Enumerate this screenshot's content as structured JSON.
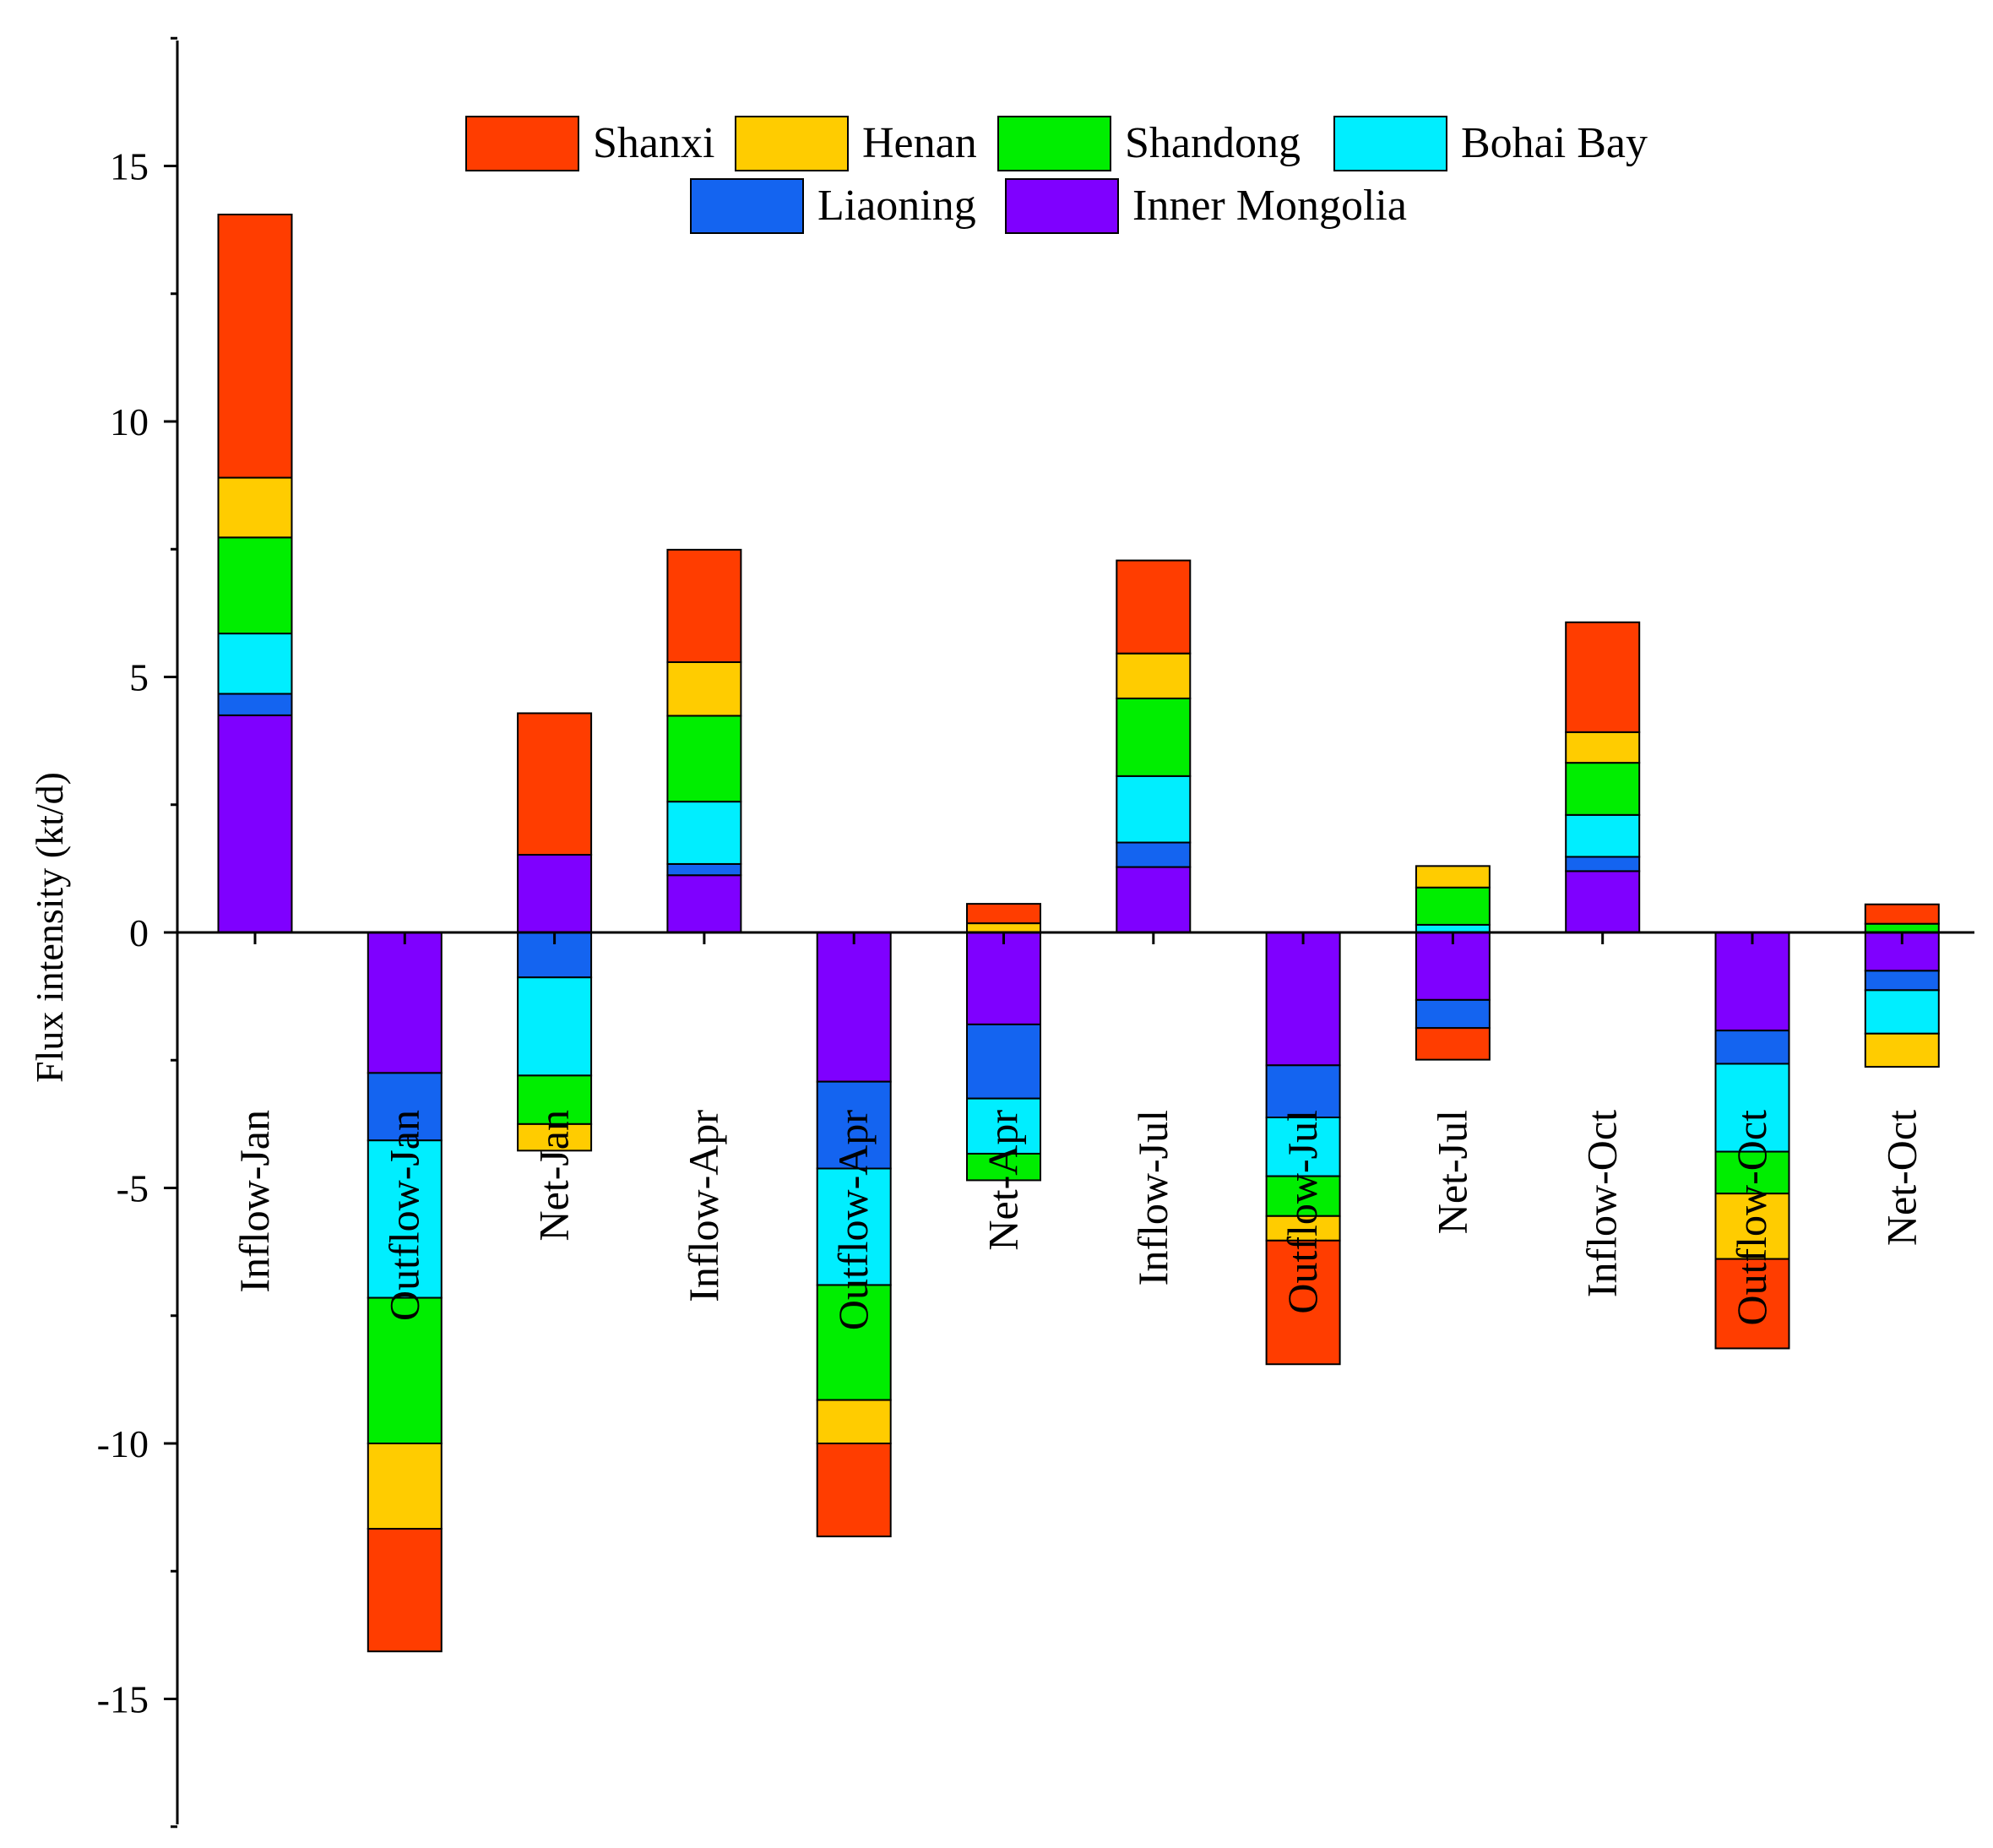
{
  "chart_data": {
    "type": "bar",
    "stacked": true,
    "title": "",
    "xlabel": "",
    "ylabel": "Flux intensity (kt/d)",
    "ylim": [
      -17.5,
      17.5
    ],
    "yticks": [
      -15,
      -10,
      -5,
      0,
      5,
      10,
      15
    ],
    "ytick_labels": [
      "-15",
      "-10",
      "-5",
      "0",
      "5",
      "10",
      "15"
    ],
    "legend_position": "top",
    "categories": [
      "Inflow-Jan",
      "Outflow-Jan",
      "Net-Jan",
      "Inflow-Apr",
      "Outflow-Apr",
      "Net-Apr",
      "Inflow-Jul",
      "Outflow-Jul",
      "Net-Jul",
      "Inflow-Oct",
      "Outflow-Oct",
      "Net-Oct"
    ],
    "series": [
      {
        "name": "Inner Mongolia",
        "color": "#7F00FF",
        "values": [
          4.25,
          -2.75,
          1.52,
          1.12,
          -2.92,
          -1.8,
          1.28,
          -2.6,
          -1.32,
          1.2,
          -1.92,
          -0.75
        ]
      },
      {
        "name": "Liaoning",
        "color": "#1464F0",
        "values": [
          0.42,
          -1.32,
          -0.88,
          0.22,
          -1.7,
          -1.45,
          0.48,
          -1.02,
          -0.55,
          0.28,
          -0.65,
          -0.38
        ]
      },
      {
        "name": "Bohai Bay",
        "color": "#00EEFF",
        "values": [
          1.18,
          -3.08,
          -1.92,
          1.22,
          -2.28,
          -1.08,
          1.3,
          -1.15,
          0.15,
          0.82,
          -1.72,
          -0.85
        ]
      },
      {
        "name": "Shandong",
        "color": "#00EE00",
        "values": [
          1.88,
          -2.85,
          -0.95,
          1.68,
          -2.25,
          -0.52,
          1.52,
          -0.78,
          0.73,
          1.02,
          -0.82,
          0.17
        ]
      },
      {
        "name": "Henan",
        "color": "#FFCC00",
        "values": [
          1.17,
          -1.67,
          -0.52,
          1.05,
          -0.85,
          0.18,
          0.88,
          -0.48,
          0.42,
          0.6,
          -1.28,
          -0.65
        ]
      },
      {
        "name": "Shanxi",
        "color": "#FF3D00",
        "values": [
          5.15,
          -2.4,
          2.77,
          2.2,
          -1.82,
          0.38,
          1.82,
          -2.42,
          -0.62,
          2.15,
          -1.75,
          0.38
        ]
      }
    ],
    "legend_order": [
      "Shanxi",
      "Henan",
      "Shandong",
      "Bohai Bay",
      "Liaoning",
      "Inner Mongolia"
    ]
  }
}
